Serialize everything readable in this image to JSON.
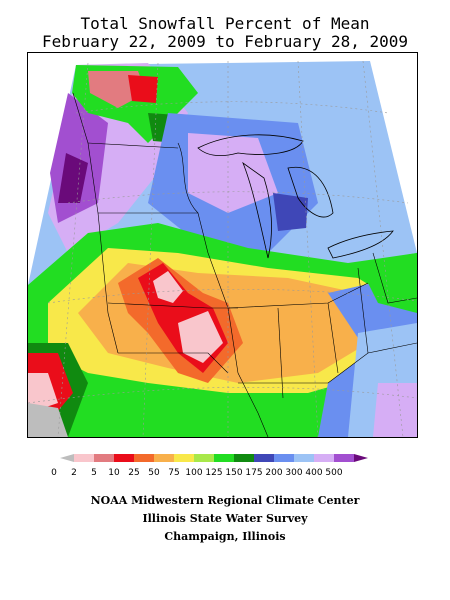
{
  "title": {
    "line1": "Total Snowfall Percent of Mean",
    "line2": "February 22, 2009 to February 28, 2009"
  },
  "legend": {
    "classes": [
      {
        "label": "0",
        "color": "#bdbdbd"
      },
      {
        "label": "2",
        "color": "#f9c6cc"
      },
      {
        "label": "5",
        "color": "#e27b80"
      },
      {
        "label": "10",
        "color": "#ea0d1a"
      },
      {
        "label": "25",
        "color": "#f36a2b"
      },
      {
        "label": "50",
        "color": "#f8b04b"
      },
      {
        "label": "75",
        "color": "#f8e84a"
      },
      {
        "label": "100",
        "color": "#a8e84a"
      },
      {
        "label": "125",
        "color": "#22dd22"
      },
      {
        "label": "150",
        "color": "#108a10"
      },
      {
        "label": "175",
        "color": "#3f47b7"
      },
      {
        "label": "200",
        "color": "#6a8ff0"
      },
      {
        "label": "300",
        "color": "#9cc3f5"
      },
      {
        "label": "400",
        "color": "#d6aef5"
      },
      {
        "label": "500",
        "color": "#a24fd0"
      },
      {
        "label": "",
        "color": "#6a0a7a"
      }
    ]
  },
  "credits": {
    "line1": "NOAA Midwestern Regional Climate Center",
    "line2": "Illinois State Water Survey",
    "line3": "Champaign, Illinois"
  }
}
